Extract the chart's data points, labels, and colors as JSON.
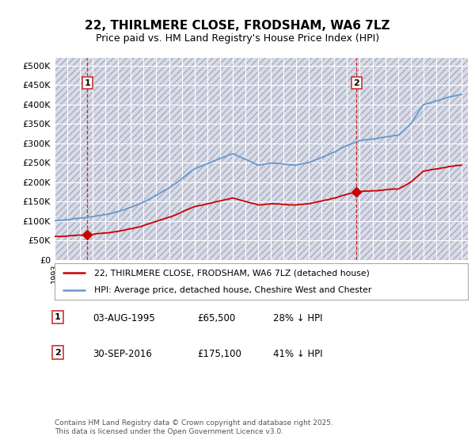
{
  "title": "22, THIRLMERE CLOSE, FRODSHAM, WA6 7LZ",
  "subtitle": "Price paid vs. HM Land Registry's House Price Index (HPI)",
  "background_color": "#ffffff",
  "plot_bg_color": "#d8dce8",
  "grid_color": "#ffffff",
  "legend_entry1": "22, THIRLMERE CLOSE, FRODSHAM, WA6 7LZ (detached house)",
  "legend_entry2": "HPI: Average price, detached house, Cheshire West and Chester",
  "annotation1_label": "1",
  "annotation1_date": "03-AUG-1995",
  "annotation1_price": "£65,500",
  "annotation1_hpi": "28% ↓ HPI",
  "annotation2_label": "2",
  "annotation2_date": "30-SEP-2016",
  "annotation2_price": "£175,100",
  "annotation2_hpi": "41% ↓ HPI",
  "copyright_text": "Contains HM Land Registry data © Crown copyright and database right 2025.\nThis data is licensed under the Open Government Licence v3.0.",
  "sale1_x": 1995.58,
  "sale1_y": 65500,
  "sale2_x": 2016.75,
  "sale2_y": 175100,
  "xmin": 1993,
  "xmax": 2025.5,
  "ymin": 0,
  "ymax": 520000,
  "yticks": [
    0,
    50000,
    100000,
    150000,
    200000,
    250000,
    300000,
    350000,
    400000,
    450000,
    500000
  ],
  "sale_marker_color": "#cc0000",
  "hpi_line_color": "#6699cc",
  "price_line_color": "#cc0000",
  "hpi_anchors_x": [
    1993,
    1994,
    1995,
    1996,
    1997,
    1998,
    1999,
    2000,
    2001,
    2002,
    2003,
    2004,
    2005,
    2006,
    2007,
    2008,
    2009,
    2010,
    2011,
    2012,
    2013,
    2014,
    2015,
    2016,
    2017,
    2018,
    2019,
    2020,
    2021,
    2022,
    2023,
    2024,
    2025
  ],
  "hpi_anchors_y": [
    100000,
    103000,
    108000,
    112000,
    117000,
    125000,
    135000,
    148000,
    165000,
    185000,
    210000,
    235000,
    248000,
    262000,
    275000,
    260000,
    245000,
    250000,
    248000,
    245000,
    252000,
    265000,
    280000,
    297000,
    310000,
    315000,
    320000,
    325000,
    355000,
    405000,
    415000,
    425000,
    432000
  ]
}
